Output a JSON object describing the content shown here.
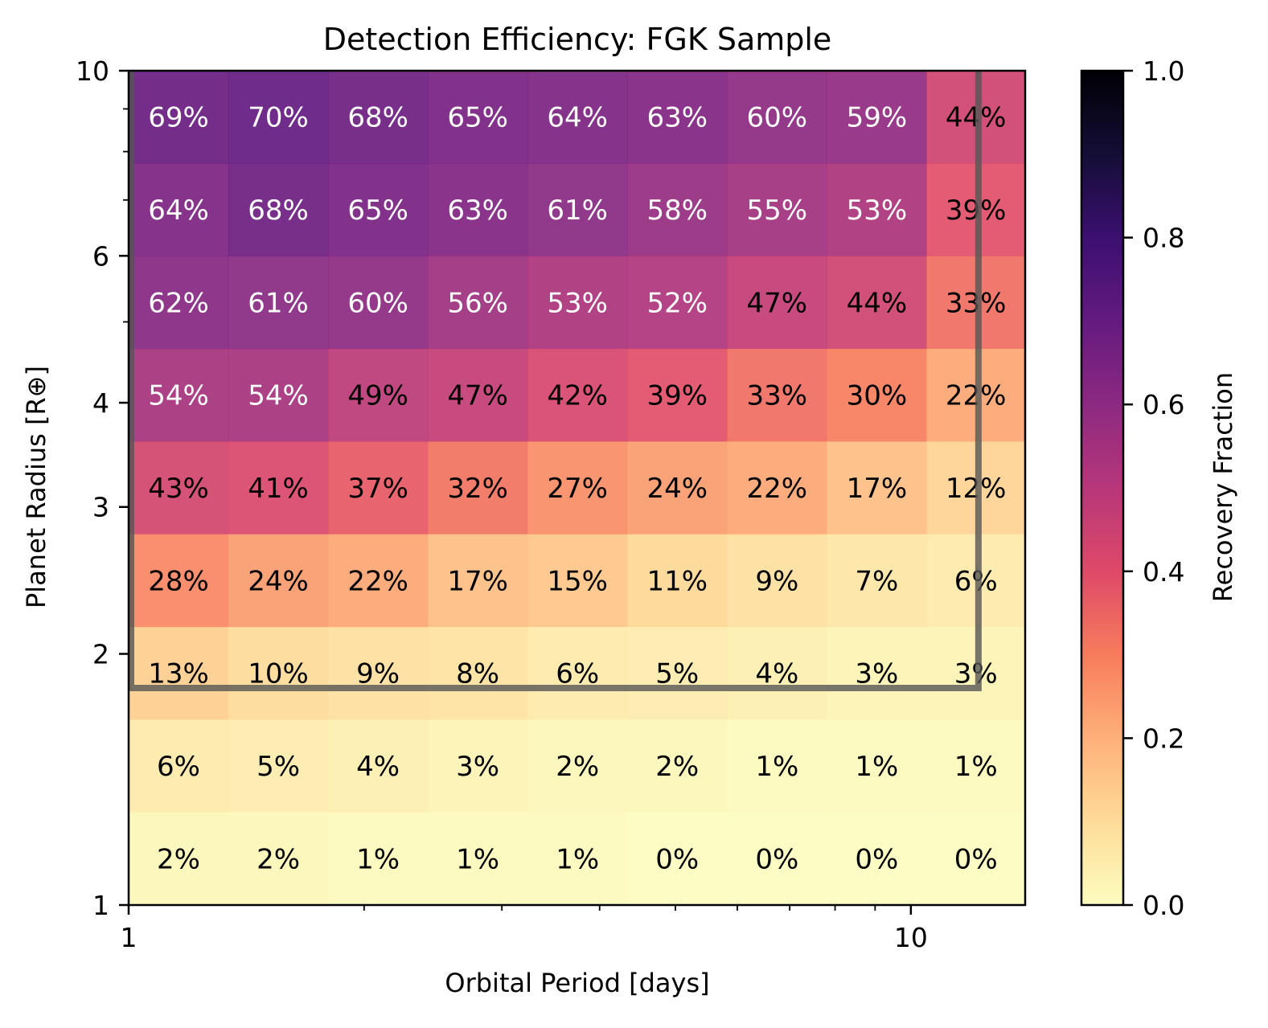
{
  "chart_data": {
    "type": "heatmap",
    "title": "Detection Efficiency: FGK Sample",
    "xlabel": "Orbital Period [days]",
    "ylabel": "Planet Radius [R⊕]",
    "xscale": "log",
    "yscale": "log",
    "xlim": [
      1,
      14
    ],
    "ylim": [
      1,
      10
    ],
    "x_ticks": [
      {
        "value": 1,
        "label": "1"
      },
      {
        "value": 10,
        "label": "10"
      }
    ],
    "y_ticks": [
      {
        "value": 1,
        "label": "1"
      },
      {
        "value": 2,
        "label": "2"
      },
      {
        "value": 3,
        "label": "3"
      },
      {
        "value": 4,
        "label": "4"
      },
      {
        "value": 6,
        "label": "6"
      },
      {
        "value": 10,
        "label": "10"
      }
    ],
    "x_bin_edges": [
      1,
      1.341,
      1.799,
      2.413,
      3.236,
      4.341,
      5.822,
      7.809,
      10.474,
      14
    ],
    "y_bin_edges": [
      1,
      1.292,
      1.668,
      2.154,
      2.783,
      3.594,
      4.642,
      5.995,
      7.743,
      10
    ],
    "values_percent": [
      [
        69,
        70,
        68,
        65,
        64,
        63,
        60,
        59,
        44
      ],
      [
        64,
        68,
        65,
        63,
        61,
        58,
        55,
        53,
        39
      ],
      [
        62,
        61,
        60,
        56,
        53,
        52,
        47,
        44,
        33
      ],
      [
        54,
        54,
        49,
        47,
        42,
        39,
        33,
        30,
        22
      ],
      [
        43,
        41,
        37,
        32,
        27,
        24,
        22,
        17,
        12
      ],
      [
        28,
        24,
        22,
        17,
        15,
        11,
        9,
        7,
        6
      ],
      [
        13,
        10,
        9,
        8,
        6,
        5,
        4,
        3,
        3
      ],
      [
        6,
        5,
        4,
        3,
        2,
        2,
        1,
        1,
        1
      ],
      [
        2,
        2,
        1,
        1,
        1,
        0,
        0,
        0,
        0
      ]
    ],
    "rows_order": "top-to-bottom (largest radius first)",
    "region_outline": {
      "x_range": [
        1,
        12.2
      ],
      "y_range": [
        1.82,
        10
      ]
    },
    "colorbar": {
      "label": "Recovery Fraction",
      "colormap": "magma_r",
      "range": [
        0,
        1
      ],
      "ticks": [
        "0.0",
        "0.2",
        "0.4",
        "0.6",
        "0.8",
        "1.0"
      ]
    }
  }
}
